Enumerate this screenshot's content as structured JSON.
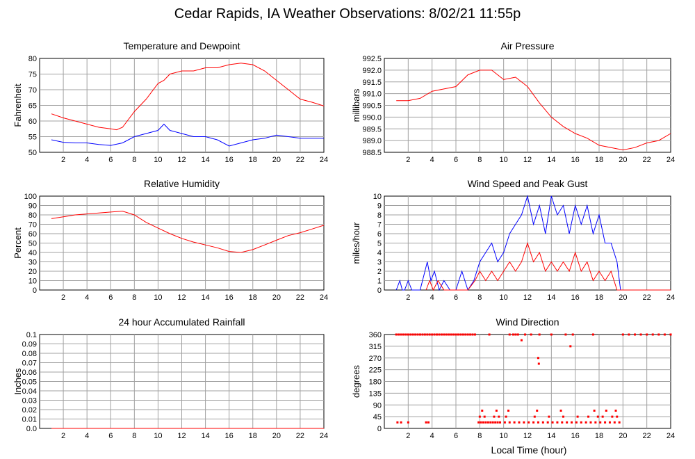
{
  "title": "Cedar Rapids, IA Weather Observations: 8/02/21 11:55p",
  "x_axis_label": "Local Time (hour)",
  "x_ticks": [
    "2",
    "4",
    "6",
    "8",
    "10",
    "12",
    "14",
    "16",
    "18",
    "20",
    "22",
    "24"
  ],
  "colors": {
    "red": "#ff0000",
    "blue": "#0000ff"
  },
  "chart_data": [
    {
      "type": "line",
      "title": "Temperature and Dewpoint",
      "ylabel": "Fahrenheit",
      "xlim": [
        0,
        24
      ],
      "ylim": [
        50,
        80
      ],
      "yticks": [
        "50",
        "55",
        "60",
        "65",
        "70",
        "75",
        "80"
      ],
      "grid": true,
      "series": [
        {
          "color": "#ff0000",
          "x": [
            1,
            2,
            3,
            4,
            5,
            6,
            6.5,
            7,
            8,
            9,
            10,
            10.5,
            11,
            12,
            13,
            14,
            15,
            16,
            17,
            18,
            19,
            20,
            21,
            22,
            23,
            24
          ],
          "values": [
            62.3,
            61,
            60,
            59,
            58,
            57.5,
            57.2,
            58,
            63,
            67,
            72,
            73,
            75,
            76,
            76,
            77,
            77,
            78,
            78.5,
            78,
            76,
            73,
            70,
            67,
            66,
            64.8
          ]
        },
        {
          "color": "#0000ff",
          "x": [
            1,
            2,
            3,
            4,
            5,
            6,
            7,
            8,
            9,
            10,
            10.5,
            11,
            12,
            13,
            14,
            15,
            16,
            17,
            18,
            19,
            20,
            21,
            22,
            23,
            24
          ],
          "values": [
            54,
            53.2,
            53,
            53,
            52.5,
            52.2,
            53,
            55,
            56,
            57,
            59,
            57,
            56,
            55,
            55,
            54,
            52,
            53,
            54,
            54.5,
            55.5,
            55,
            54.5,
            54.5,
            54.5
          ]
        }
      ]
    },
    {
      "type": "line",
      "title": "Air Pressure",
      "ylabel": "millibars",
      "xlim": [
        0,
        24
      ],
      "ylim": [
        988.5,
        992.5
      ],
      "yticks": [
        "988.5",
        "989.0",
        "989.5",
        "990.0",
        "990.5",
        "991.0",
        "991.5",
        "992.0",
        "992.5"
      ],
      "grid": true,
      "series": [
        {
          "color": "#ff0000",
          "x": [
            1,
            2,
            3,
            4,
            5,
            6,
            7,
            8,
            9,
            10,
            11,
            12,
            13,
            14,
            15,
            16,
            17,
            18,
            19,
            20,
            21,
            22,
            23,
            24
          ],
          "values": [
            990.7,
            990.7,
            990.8,
            991.1,
            991.2,
            991.3,
            991.8,
            992,
            992,
            991.6,
            991.7,
            991.3,
            990.6,
            990,
            989.6,
            989.3,
            989.1,
            988.8,
            988.7,
            988.6,
            988.7,
            988.9,
            989,
            989.3
          ]
        }
      ]
    },
    {
      "type": "line",
      "title": "Relative Humidity",
      "ylabel": "Percent",
      "xlim": [
        0,
        24
      ],
      "ylim": [
        0,
        100
      ],
      "yticks": [
        "0",
        "10",
        "20",
        "30",
        "40",
        "50",
        "60",
        "70",
        "80",
        "90",
        "100"
      ],
      "grid": true,
      "series": [
        {
          "color": "#ff0000",
          "x": [
            1,
            2,
            3,
            4,
            5,
            6,
            7,
            8,
            9,
            10,
            11,
            12,
            13,
            14,
            15,
            16,
            17,
            18,
            19,
            20,
            21,
            22,
            23,
            24
          ],
          "values": [
            76,
            78,
            80,
            81,
            82,
            83,
            84,
            80,
            72,
            66,
            60,
            55,
            51,
            48,
            45,
            41,
            40,
            43,
            48,
            53,
            58,
            61,
            65,
            69
          ]
        }
      ]
    },
    {
      "type": "line",
      "title": "Wind Speed and Peak Gust",
      "ylabel": "miles/hour",
      "xlim": [
        0,
        24
      ],
      "ylim": [
        0,
        10
      ],
      "yticks": [
        "0",
        "1",
        "2",
        "3",
        "4",
        "5",
        "6",
        "7",
        "8",
        "9",
        "10"
      ],
      "grid": true,
      "series": [
        {
          "color": "#0000ff",
          "x": [
            1,
            1.3,
            1.5,
            1.7,
            2,
            2.3,
            3,
            3.4,
            3.6,
            3.9,
            4.2,
            4.6,
            5,
            5.5,
            6,
            6.5,
            7,
            7.5,
            8,
            8.5,
            9,
            9.5,
            10,
            10.5,
            11,
            11.5,
            12,
            12.5,
            13,
            13.5,
            14,
            14.5,
            15,
            15.5,
            16,
            16.5,
            17,
            17.5,
            18,
            18.5,
            19,
            19.5,
            19.8,
            20,
            21,
            22,
            23,
            24
          ],
          "values": [
            0,
            1,
            0,
            0,
            1,
            0,
            0,
            2,
            3,
            1,
            2,
            0,
            1,
            0,
            0,
            2,
            0,
            1,
            3,
            4,
            5,
            3,
            4,
            6,
            7,
            8,
            10,
            7,
            9,
            6,
            10,
            8,
            9,
            6,
            9,
            7,
            9,
            6,
            8,
            5,
            5,
            3,
            0,
            0,
            0,
            0,
            0,
            0
          ]
        },
        {
          "color": "#ff0000",
          "x": [
            3.5,
            3.8,
            4.1,
            4.5,
            5,
            6,
            7,
            7.6,
            8,
            8.5,
            9,
            9.5,
            10,
            10.5,
            11,
            11.5,
            12,
            12.5,
            13,
            13.5,
            14,
            14.5,
            15,
            15.5,
            16,
            16.5,
            17,
            17.5,
            18,
            18.5,
            19,
            19.5,
            20,
            21,
            22,
            23,
            24
          ],
          "values": [
            0,
            1,
            0,
            1,
            0,
            0,
            0,
            1,
            2,
            1,
            2,
            1,
            2,
            3,
            2,
            3,
            5,
            3,
            4,
            2,
            3,
            2,
            3,
            2,
            4,
            2,
            3,
            1,
            2,
            1,
            2,
            0,
            0,
            0,
            0,
            0,
            0
          ]
        }
      ]
    },
    {
      "type": "line",
      "title": "24 hour Accumulated Rainfall",
      "ylabel": "Inches",
      "xlim": [
        0,
        24
      ],
      "ylim": [
        0,
        0.1
      ],
      "yticks": [
        "0.0",
        "0.01",
        "0.02",
        "0.03",
        "0.04",
        "0.05",
        "0.06",
        "0.07",
        "0.08",
        "0.09",
        "0.1"
      ],
      "grid": true,
      "series": [
        {
          "color": "#ff0000",
          "x": [
            1,
            24
          ],
          "values": [
            0,
            0
          ]
        }
      ]
    },
    {
      "type": "scatter",
      "title": "Wind Direction",
      "ylabel": "degrees",
      "xlabel": "Local Time (hour)",
      "xlim": [
        0,
        24
      ],
      "ylim": [
        0,
        360
      ],
      "yticks": [
        "0",
        "45",
        "90",
        "135",
        "180",
        "225",
        "270",
        "315",
        "360"
      ],
      "grid": true,
      "series": [
        {
          "color": "#ff0000",
          "x": [
            1,
            1.2,
            1.4,
            1.6,
            1.8,
            2,
            2.2,
            2.4,
            2.6,
            2.8,
            3,
            3.2,
            3.4,
            3.6,
            3.8,
            4,
            4.2,
            4.4,
            4.6,
            4.8,
            5,
            5.2,
            5.4,
            5.6,
            5.8,
            6,
            6.2,
            6.4,
            6.6,
            6.8,
            7,
            7.2,
            7.4,
            7.6,
            8.8,
            10.5,
            10.8,
            11,
            11.2,
            11.8,
            12.3,
            13,
            14,
            15.2,
            15.8,
            17.5,
            20,
            20.5,
            21,
            21.5,
            22,
            22.5,
            23,
            23.5,
            24,
            1.1,
            1.4,
            2,
            3.5,
            3.7,
            7.9,
            8.1,
            8.3,
            8.5,
            8.7,
            8.9,
            9.1,
            9.3,
            9.5,
            9.7,
            10.1,
            10.5,
            10.9,
            11.3,
            11.7,
            12.1,
            12.5,
            12.9,
            13.3,
            13.7,
            14.1,
            14.5,
            14.9,
            15.3,
            15.7,
            16.1,
            16.5,
            16.9,
            17.3,
            17.7,
            18.1,
            18.5,
            18.9,
            19.3,
            19.7,
            8,
            8.4,
            9.2,
            9.6,
            10.2,
            12.6,
            13.8,
            15,
            16.2,
            17.1,
            17.9,
            18.3,
            19.1,
            19.5,
            8.2,
            9.4,
            10.4,
            12.8,
            14.8,
            17.6,
            18.6,
            19.4,
            12.9,
            12.95,
            15.6,
            11.5
          ],
          "values": [
            360,
            360,
            360,
            360,
            360,
            360,
            360,
            360,
            360,
            360,
            360,
            360,
            360,
            360,
            360,
            360,
            360,
            360,
            360,
            360,
            360,
            360,
            360,
            360,
            360,
            360,
            360,
            360,
            360,
            360,
            360,
            360,
            360,
            360,
            360,
            360,
            360,
            360,
            360,
            360,
            360,
            360,
            360,
            360,
            360,
            360,
            360,
            360,
            360,
            360,
            360,
            360,
            360,
            360,
            360,
            23,
            23,
            23,
            23,
            23,
            23,
            23,
            23,
            23,
            23,
            23,
            23,
            23,
            23,
            23,
            23,
            23,
            23,
            23,
            23,
            23,
            23,
            23,
            23,
            23,
            23,
            23,
            23,
            23,
            23,
            23,
            23,
            23,
            23,
            23,
            23,
            23,
            23,
            23,
            23,
            45,
            45,
            45,
            45,
            45,
            45,
            45,
            45,
            45,
            45,
            45,
            45,
            45,
            45,
            68,
            68,
            68,
            68,
            68,
            68,
            68,
            68,
            270,
            248,
            315,
            338
          ]
        }
      ]
    }
  ]
}
